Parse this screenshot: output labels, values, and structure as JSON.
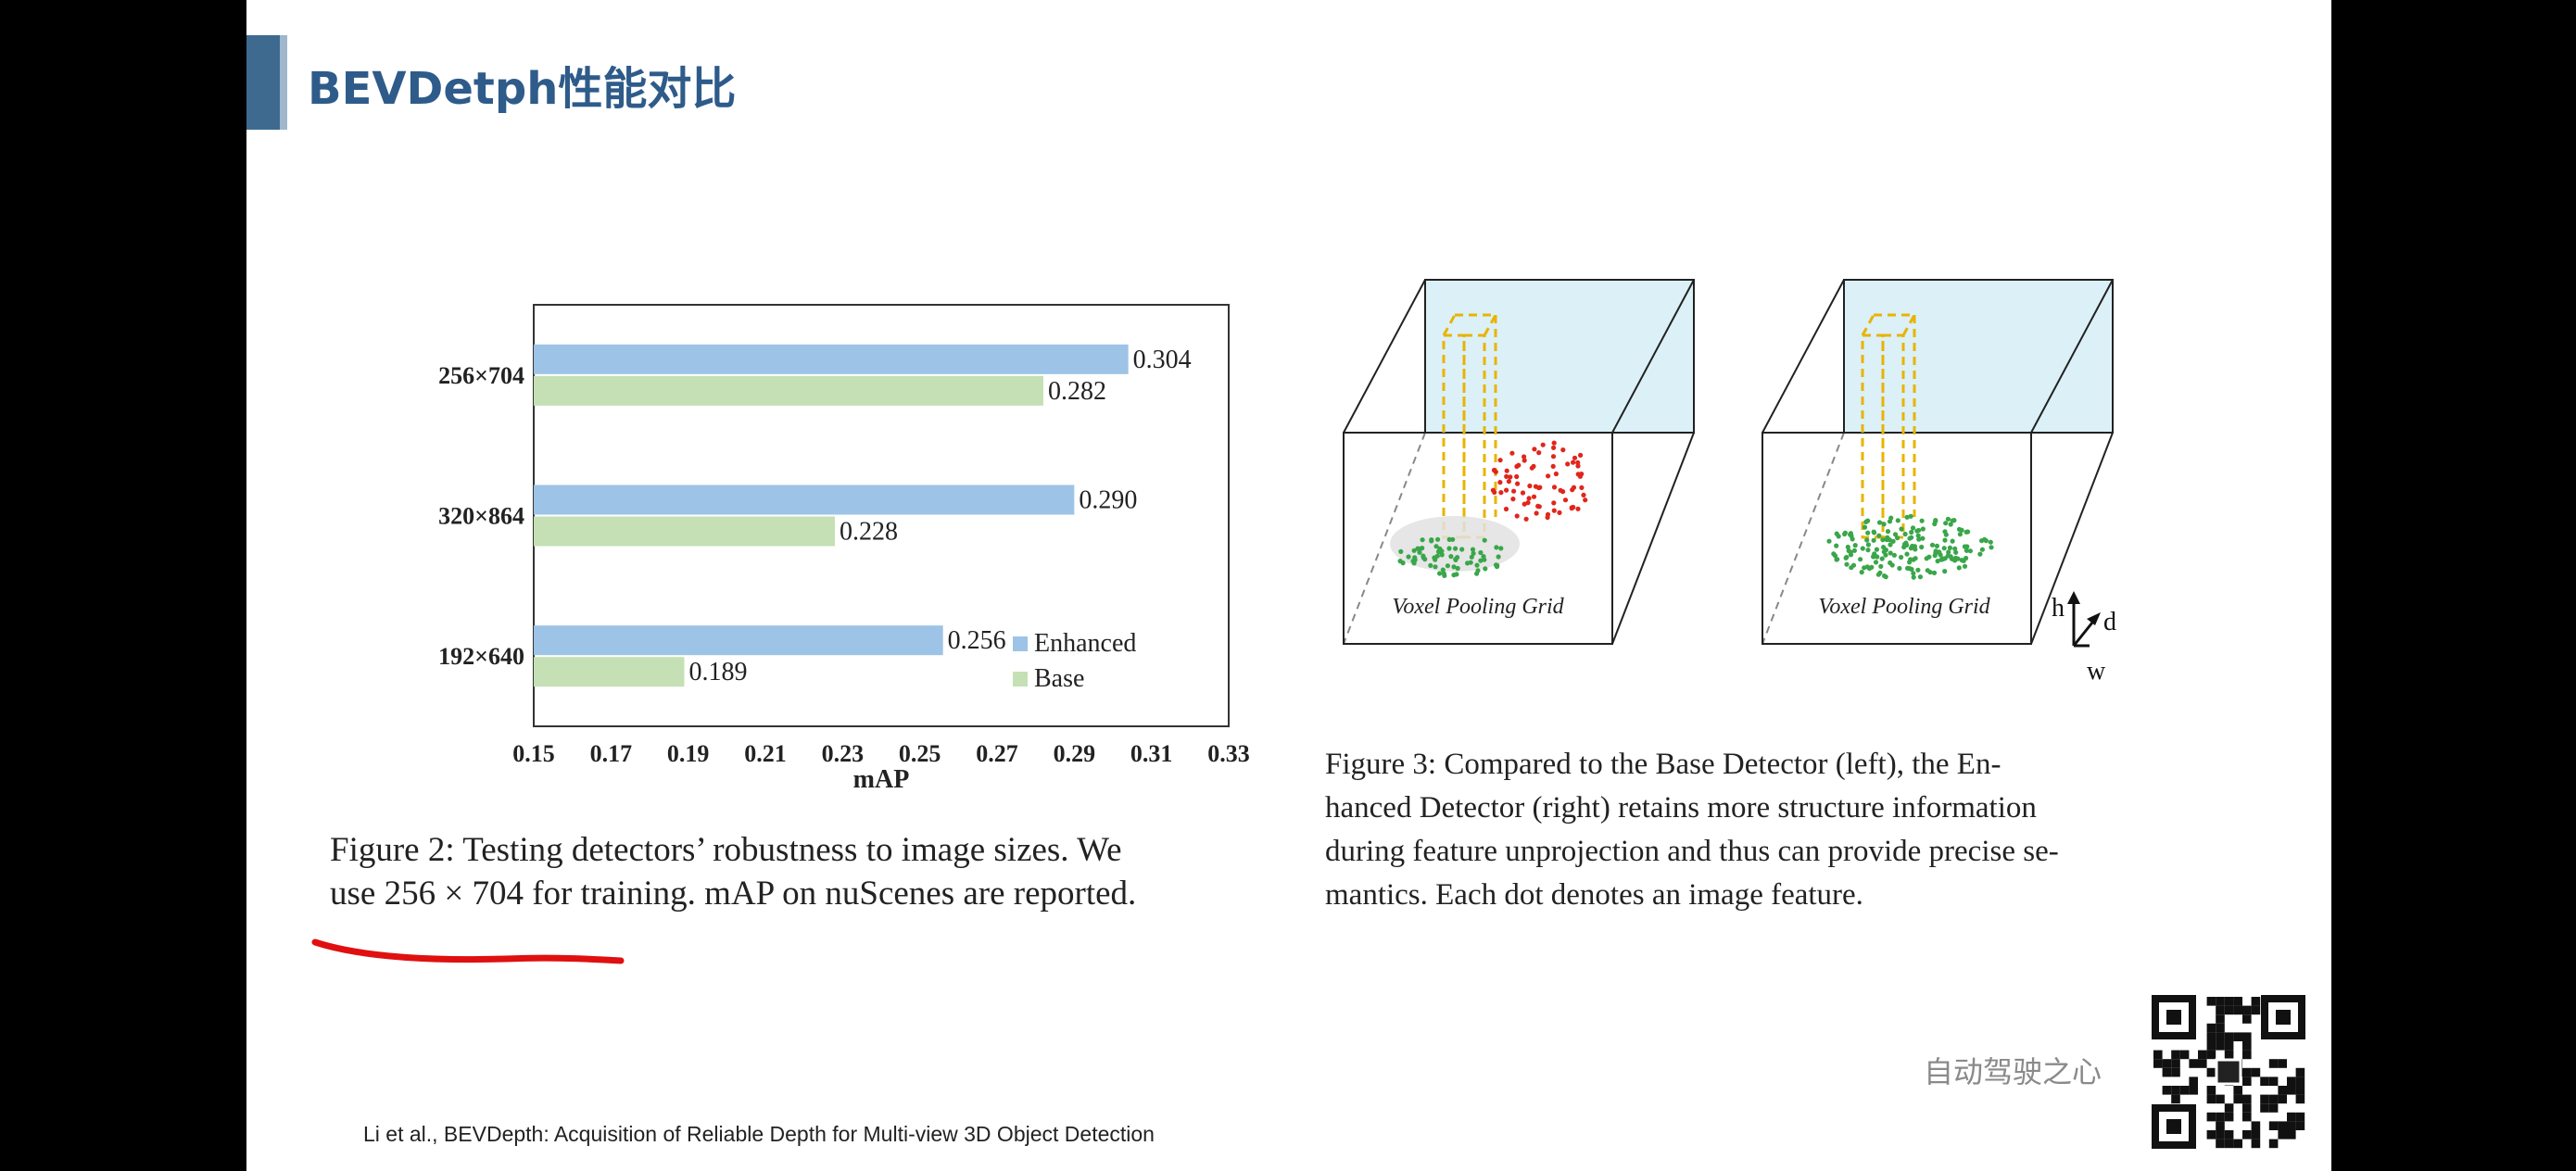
{
  "slide": {
    "title": "BEVDetph性能对比",
    "citation": "Li et al., BEVDepth: Acquisition of Reliable Depth for Multi-view 3D Object Detection",
    "brand": "自动驾驶之心",
    "accent_color": "#3f6a8f"
  },
  "chart_data": {
    "type": "bar",
    "orientation": "horizontal",
    "categories": [
      "256×704",
      "320×864",
      "192×640"
    ],
    "series": [
      {
        "name": "Enhanced",
        "color": "#9dc3e6",
        "values": [
          0.304,
          0.29,
          0.256
        ]
      },
      {
        "name": "Base",
        "color": "#c5e0b4",
        "values": [
          0.282,
          0.228,
          0.189
        ]
      }
    ],
    "value_labels": {
      "Enhanced": [
        "0.304",
        "0.290",
        "0.256"
      ],
      "Base": [
        "0.282",
        "0.228",
        "0.189"
      ]
    },
    "xlabel": "mAP",
    "xlim": [
      0.15,
      0.33
    ],
    "xticks": [
      "0.15",
      "0.17",
      "0.19",
      "0.21",
      "0.23",
      "0.25",
      "0.27",
      "0.29",
      "0.31",
      "0.33"
    ],
    "legend_position": "bottom-right"
  },
  "figure2": {
    "caption_lines": [
      "Figure 2: Testing detectors’ robustness to image sizes. We",
      "use 256 × 704 for training. mAP on nuScenes are reported."
    ]
  },
  "figure3": {
    "grid_label_left": "Voxel Pooling Grid",
    "grid_label_right": "Voxel Pooling Grid",
    "axis_h": "h",
    "axis_d": "d",
    "axis_w": "w",
    "caption_lines": [
      "Figure 3: Compared to the Base Detector (left), the En-",
      "hanced Detector (right) retains more structure information",
      "during feature unprojection and thus can provide precise se-",
      "mantics. Each dot denotes an image feature."
    ]
  }
}
